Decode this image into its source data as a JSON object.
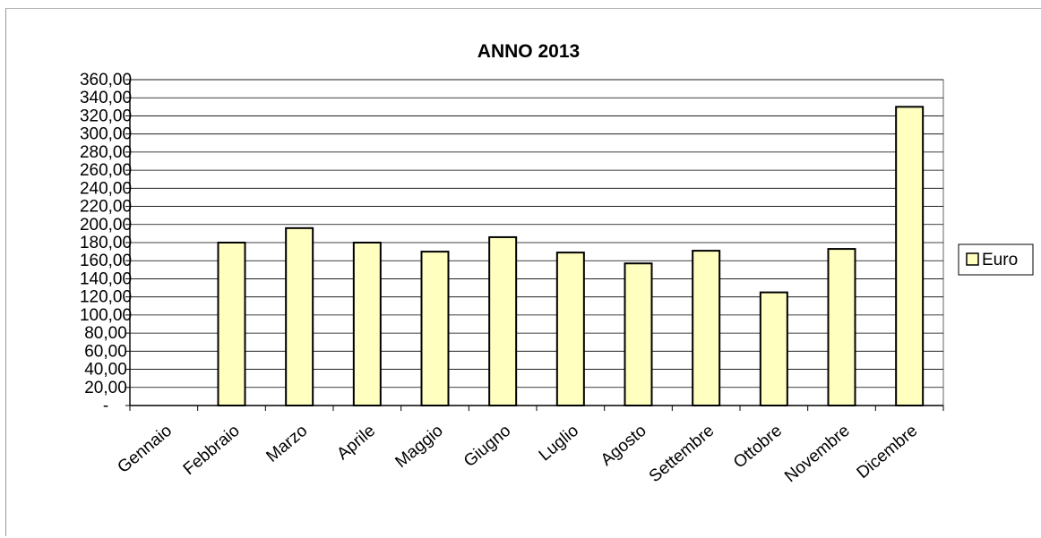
{
  "chart_data": {
    "type": "bar",
    "title": "ANNO 2013",
    "xlabel": "",
    "ylabel": "",
    "categories": [
      "Gennaio",
      "Febbraio",
      "Marzo",
      "Aprile",
      "Maggio",
      "Giugno",
      "Luglio",
      "Agosto",
      "Settembre",
      "Ottobre",
      "Novembre",
      "Dicembre"
    ],
    "series": [
      {
        "name": "Euro",
        "values": [
          0,
          180,
          196,
          180,
          170,
          186,
          169,
          157,
          171,
          125,
          173,
          330
        ]
      }
    ],
    "ylim": [
      0,
      360
    ],
    "yticks": [
      0,
      20,
      40,
      60,
      80,
      100,
      120,
      140,
      160,
      180,
      200,
      220,
      240,
      260,
      280,
      300,
      320,
      340,
      360
    ],
    "ytick_labels": [
      "-",
      "20,00",
      "40,00",
      "60,00",
      "80,00",
      "100,00",
      "120,00",
      "140,00",
      "160,00",
      "180,00",
      "200,00",
      "220,00",
      "240,00",
      "260,00",
      "280,00",
      "300,00",
      "320,00",
      "340,00",
      "360,00"
    ],
    "grid": true,
    "legend_position": "right",
    "colors": {
      "bar_fill": "#ffffc0",
      "bar_stroke": "#000000",
      "grid": "#000000",
      "axis": "#000000"
    }
  }
}
